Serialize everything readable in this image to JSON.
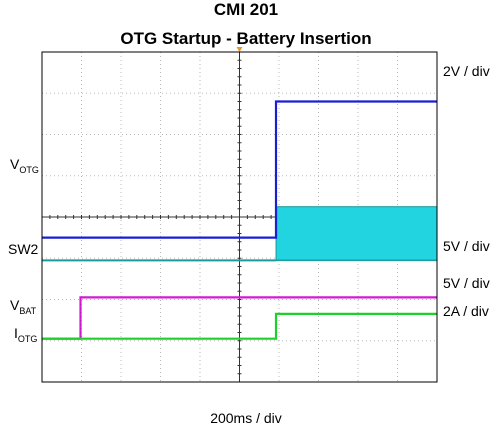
{
  "chart_data": {
    "type": "line",
    "title": "CMI 201",
    "subtitle": "OTG Startup - Battery Insertion",
    "x_unit_label": "200ms / div",
    "xlim": [
      0,
      2000
    ],
    "divisions": {
      "x": 10,
      "y": 8
    },
    "trigger_marker_color": "#e59a20",
    "series": [
      {
        "name": "VOTG",
        "label_main": "V",
        "label_sub": "OTG",
        "scale": "2V / div",
        "color": "#1a1fd6",
        "points": [
          [
            0,
            3.5
          ],
          [
            1185,
            3.5
          ],
          [
            1185,
            6.8
          ],
          [
            2000,
            6.8
          ]
        ]
      },
      {
        "name": "SW2",
        "scale": "5V / div",
        "color": "#1a9a9a",
        "fill_color": "#22d3e0",
        "baseline": 2.95,
        "band_start": 1185,
        "band_low": 2.95,
        "band_high": 4.25
      },
      {
        "name": "VBAT",
        "label_main": "V",
        "label_sub": "BAT",
        "scale": "5V / div",
        "color": "#d21bd0",
        "points": [
          [
            0,
            1.05
          ],
          [
            195,
            1.05
          ],
          [
            195,
            2.05
          ],
          [
            2000,
            2.05
          ]
        ]
      },
      {
        "name": "IOTG",
        "label_main": "I",
        "label_sub": "OTG",
        "scale": "2A / div",
        "color": "#1fcf2a",
        "points": [
          [
            0,
            1.05
          ],
          [
            1185,
            1.05
          ],
          [
            1185,
            1.65
          ],
          [
            2000,
            1.65
          ]
        ]
      }
    ],
    "grid": true
  }
}
